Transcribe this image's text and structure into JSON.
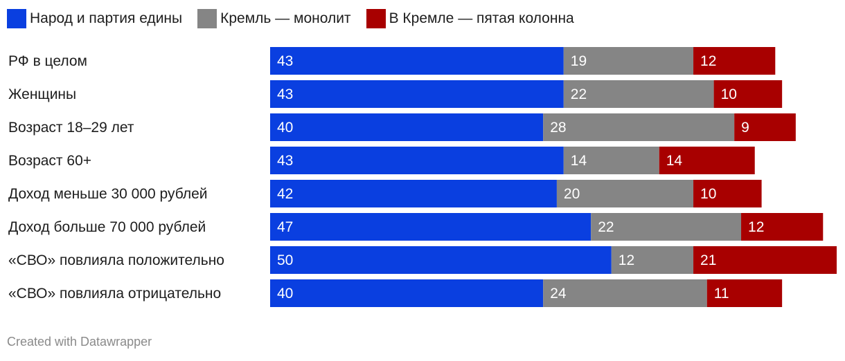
{
  "legend": {
    "items": [
      {
        "label": "Народ и партия едины",
        "color": "#0a3fe0"
      },
      {
        "label": "Кремль — монолит",
        "color": "#858585"
      },
      {
        "label": "В Кремле — пятая колонна",
        "color": "#a80000"
      }
    ]
  },
  "chart_data": {
    "type": "bar",
    "orientation": "horizontal",
    "stacked": true,
    "categories": [
      "РФ в целом",
      "Женщины",
      "Возраст 18–29 лет",
      "Возраст 60+",
      "Доход меньше 30 000 рублей",
      "Доход больше 70 000 рублей",
      "«СВО» повлияла положительно",
      "«СВО» повлияла отрицательно"
    ],
    "series": [
      {
        "name": "Народ и партия едины",
        "color": "#0a3fe0",
        "values": [
          43,
          43,
          40,
          43,
          42,
          47,
          50,
          40
        ]
      },
      {
        "name": "Кремль — монолит",
        "color": "#858585",
        "values": [
          19,
          22,
          28,
          14,
          20,
          22,
          12,
          24
        ]
      },
      {
        "name": "В Кремле — пятая колонна",
        "color": "#a80000",
        "values": [
          12,
          10,
          9,
          14,
          10,
          12,
          21,
          11
        ]
      }
    ],
    "xlim": [
      0,
      83
    ]
  },
  "footer": {
    "credit": "Created with Datawrapper"
  }
}
